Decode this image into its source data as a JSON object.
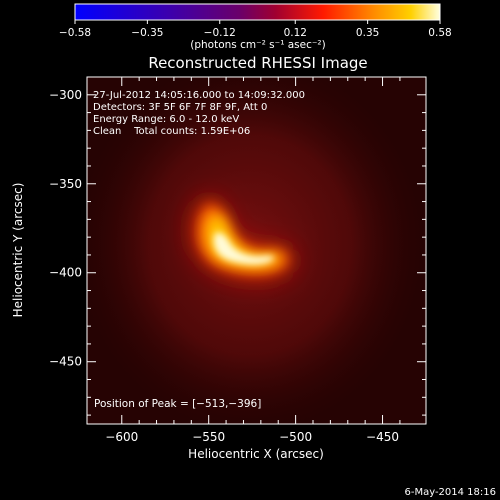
{
  "chart_data": {
    "type": "heatmap",
    "title": "Reconstructed RHESSI Image",
    "xlabel": "Heliocentric X (arcsec)",
    "ylabel": "Heliocentric Y (arcsec)",
    "xlim": [
      -620,
      -425
    ],
    "ylim": [
      -485,
      -290
    ],
    "xticks": [
      -600,
      -550,
      -500,
      -450
    ],
    "xtick_labels": [
      "−600",
      "−550",
      "−500",
      "−450"
    ],
    "yticks": [
      -300,
      -350,
      -400,
      -450
    ],
    "ytick_labels": [
      "−300",
      "−350",
      "−400",
      "−450"
    ],
    "colorbar": {
      "min": -0.58,
      "max": 0.58,
      "ticks": [
        -0.58,
        -0.35,
        -0.12,
        0.12,
        0.35,
        0.58
      ],
      "tick_labels": [
        "−0.58",
        "−0.35",
        "−0.12",
        "0.12",
        "0.35",
        "0.58"
      ],
      "unit_label": "(photons cm⁻² s⁻¹ asec⁻²)"
    },
    "annotations": [
      "27-Jul-2012 14:05:16.000 to 14:09:32.000",
      "Detectors: 3F 5F 6F 7F 8F 9F, Att 0",
      "Energy Range: 6.0 - 12.0 keV",
      "Clean    Total counts: 1.59E+06"
    ],
    "peak_label": "Position of Peak = [−513,−396]",
    "peak": [
      -513,
      -396
    ],
    "date_stamp": "6-May-2014 18:16"
  }
}
